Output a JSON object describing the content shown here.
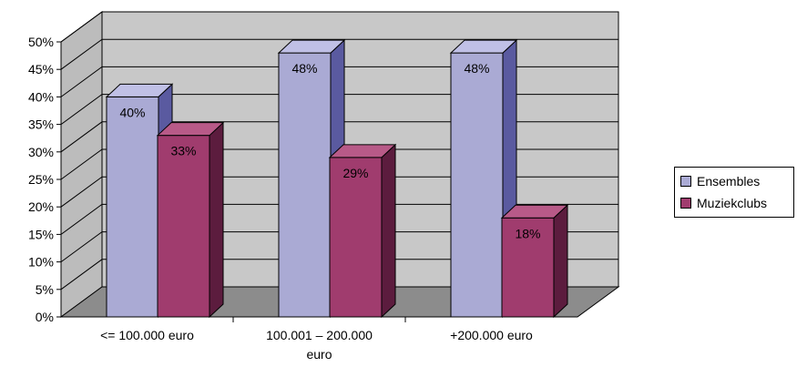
{
  "chart_data": {
    "type": "bar",
    "categories": [
      "<= 100.000 euro",
      "100.001 – 200.000 euro",
      "+200.000 euro"
    ],
    "series": [
      {
        "name": "Ensembles",
        "values": [
          40,
          48,
          48
        ],
        "labels": [
          "40%",
          "48%",
          "48%"
        ],
        "color": "#aaaad4"
      },
      {
        "name": "Muziekclubs",
        "values": [
          33,
          29,
          18
        ],
        "labels": [
          "33%",
          "29%",
          "18%"
        ],
        "color": "#a03c6e"
      }
    ],
    "ylim": [
      0,
      50
    ],
    "yticks": [
      "0%",
      "5%",
      "10%",
      "15%",
      "20%",
      "25%",
      "30%",
      "35%",
      "40%",
      "45%",
      "50%"
    ],
    "grid": true,
    "legend_position": "right",
    "style": "3d-clustered-column"
  }
}
